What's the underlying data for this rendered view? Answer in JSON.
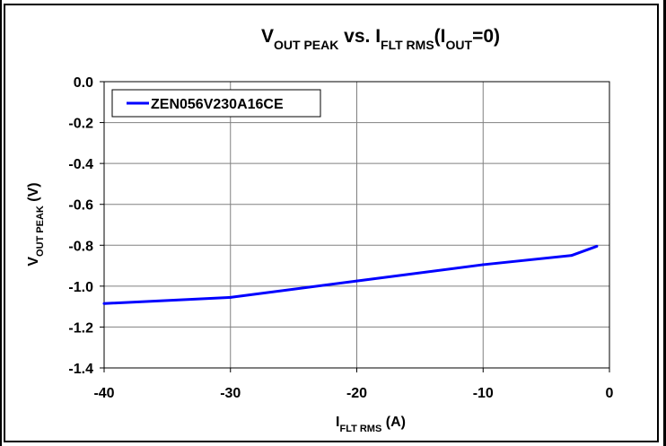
{
  "chart_data": {
    "type": "line",
    "title": {
      "parts": [
        {
          "text": "V",
          "sub": false
        },
        {
          "text": "OUT PEAK",
          "sub": true
        },
        {
          "text": " vs. I",
          "sub": false
        },
        {
          "text": "FLT RMS",
          "sub": true
        },
        {
          "text": "(I",
          "sub": false
        },
        {
          "text": "OUT",
          "sub": true
        },
        {
          "text": "=0)",
          "sub": false
        }
      ]
    },
    "xlabel": {
      "parts": [
        {
          "text": "I",
          "sub": false
        },
        {
          "text": "FLT RMS",
          "sub": true
        },
        {
          "text": " (A)",
          "sub": false
        }
      ]
    },
    "ylabel": {
      "parts": [
        {
          "text": "V",
          "sub": false
        },
        {
          "text": "OUT PEAK",
          "sub": true
        },
        {
          "text": " (V)",
          "sub": false
        }
      ]
    },
    "xlim": [
      -40,
      0
    ],
    "ylim": [
      -1.4,
      0.0
    ],
    "xticks": [
      -40,
      -30,
      -20,
      -10,
      0
    ],
    "xtick_labels": [
      "-40",
      "-30",
      "-20",
      "-10",
      "0"
    ],
    "yticks": [
      0.0,
      -0.2,
      -0.4,
      -0.6,
      -0.8,
      -1.0,
      -1.2,
      -1.4
    ],
    "ytick_labels": [
      "0.0",
      "-0.2",
      "-0.4",
      "-0.6",
      "-0.8",
      "-1.0",
      "-1.2",
      "-1.4"
    ],
    "grid": true,
    "legend_position": "top-left",
    "series": [
      {
        "name": "ZEN056V230A16CE",
        "color": "#0000ff",
        "x": [
          -40,
          -30,
          -20,
          -10,
          -3,
          -1
        ],
        "y": [
          -1.085,
          -1.055,
          -0.975,
          -0.895,
          -0.85,
          -0.805
        ]
      }
    ]
  }
}
